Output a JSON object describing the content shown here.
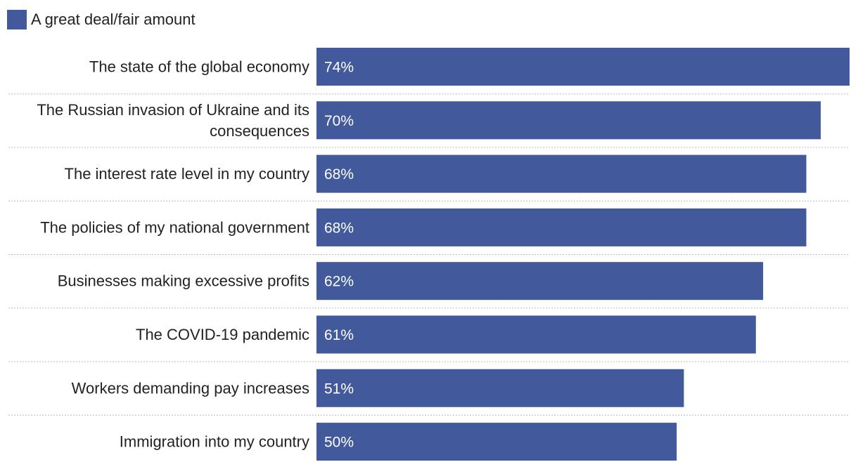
{
  "legend": {
    "label": "A great deal/fair amount",
    "color": "#425a9c"
  },
  "chart_data": {
    "type": "bar",
    "orientation": "horizontal",
    "categories": [
      [
        "The state of the global economy"
      ],
      [
        "The Russian invasion of Ukraine and its",
        "consequences"
      ],
      [
        "The interest rate level in my country"
      ],
      [
        "The policies of my national government"
      ],
      [
        "Businesses making excessive profits"
      ],
      [
        "The COVID-19 pandemic"
      ],
      [
        "Workers demanding pay increases"
      ],
      [
        "Immigration into my country"
      ]
    ],
    "series": [
      {
        "name": "A great deal/fair amount",
        "values": [
          74,
          70,
          68,
          68,
          62,
          61,
          51,
          50
        ],
        "labels": [
          "74%",
          "70%",
          "68%",
          "68%",
          "62%",
          "61%",
          "51%",
          "50%"
        ],
        "color": "#425a9c"
      }
    ],
    "xlim": [
      0,
      74
    ],
    "grid": false,
    "separators": "dotted",
    "legend_position": "top-left"
  }
}
